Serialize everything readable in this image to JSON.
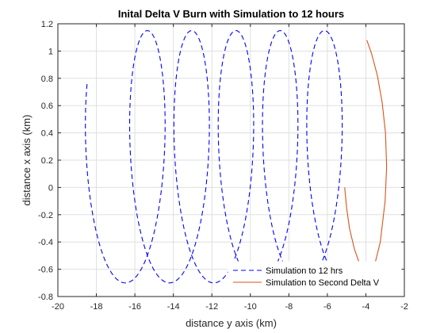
{
  "chart_data": {
    "type": "line",
    "title": "Inital Delta V Burn with Simulation to 12 hours",
    "xlabel": "distance y axis (km)",
    "ylabel": "distance x axis (km)",
    "xlim": [
      -20,
      -2
    ],
    "ylim": [
      -0.8,
      1.2
    ],
    "xticks": [
      -20,
      -18,
      -16,
      -14,
      -12,
      -10,
      -8,
      -6,
      -4,
      -2
    ],
    "yticks": [
      -0.8,
      -0.6,
      -0.4,
      -0.2,
      0,
      0.2,
      0.4,
      0.6,
      0.8,
      1,
      1.2
    ],
    "grid": true,
    "legend_location": "bottom-right",
    "series": [
      {
        "name": "Simulation to 12 hrs",
        "style": "dashed",
        "color": "#0000ff",
        "orbit_model": {
          "start_y": -5.0,
          "end_y": -17.3,
          "x_center": 0.225,
          "x_amplitude": 0.925,
          "y_drift_per_cycle": -2.3,
          "y_oscillation_amplitude": 1.45
        }
      },
      {
        "name": "Simulation to Second Delta V",
        "style": "solid",
        "color": "#d95319",
        "points": [
          [
            -5.1,
            0
          ],
          [
            -5.0,
            -0.15
          ],
          [
            -4.85,
            -0.3
          ],
          [
            -4.6,
            -0.45
          ],
          [
            -4.3,
            -0.57
          ],
          [
            -3.95,
            -0.64
          ],
          [
            -3.6,
            -0.6
          ],
          [
            -3.25,
            -0.4
          ],
          [
            -3.0,
            -0.1
          ],
          [
            -2.92,
            0.15
          ],
          [
            -2.98,
            0.4
          ],
          [
            -3.15,
            0.62
          ],
          [
            -3.4,
            0.82
          ],
          [
            -3.7,
            0.98
          ],
          [
            -3.95,
            1.08
          ]
        ]
      }
    ]
  }
}
